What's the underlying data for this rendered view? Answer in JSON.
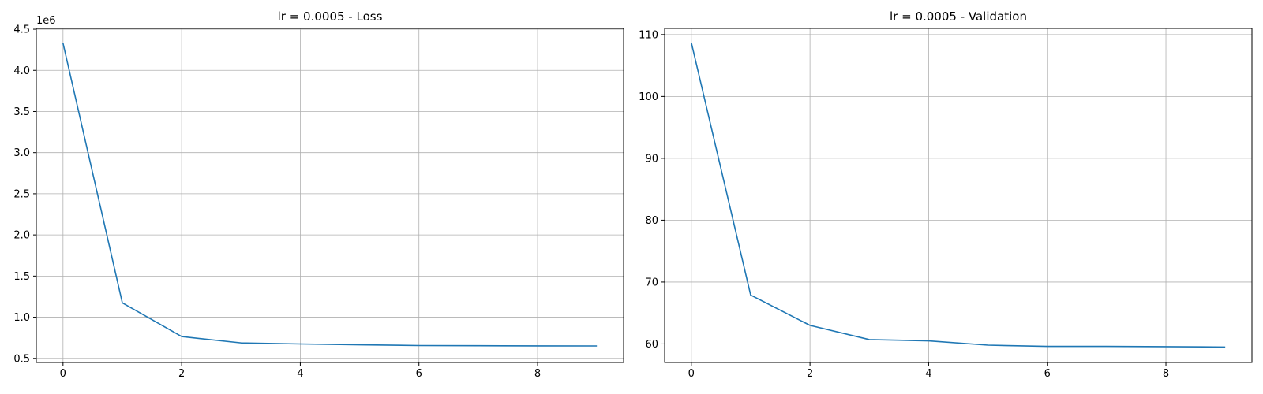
{
  "chart_data": [
    {
      "type": "line",
      "title": "lr = 0.0005 - Loss",
      "xlabel": "",
      "ylabel": "",
      "y_offset_label": "1e6",
      "x": [
        0,
        1,
        2,
        3,
        4,
        5,
        6,
        7,
        8,
        9
      ],
      "series": [
        {
          "values": [
            4330000,
            1175000,
            765000,
            688000,
            675000,
            665000,
            656000,
            654000,
            652000,
            651000
          ]
        }
      ],
      "xlim": [
        -0.45,
        9.45
      ],
      "ylim": [
        450000,
        4510000
      ],
      "xticks": [
        0,
        2,
        4,
        6,
        8
      ],
      "xtick_labels": [
        "0",
        "2",
        "4",
        "6",
        "8"
      ],
      "yticks": [
        500000,
        1000000,
        1500000,
        2000000,
        2500000,
        3000000,
        3500000,
        4000000,
        4500000
      ],
      "ytick_labels": [
        "0.5",
        "1.0",
        "1.5",
        "2.0",
        "2.5",
        "3.0",
        "3.5",
        "4.0",
        "4.5"
      ],
      "grid": true,
      "line_color": "#1f77b4"
    },
    {
      "type": "line",
      "title": "lr = 0.0005 - Validation",
      "xlabel": "",
      "ylabel": "",
      "x": [
        0,
        1,
        2,
        3,
        4,
        5,
        6,
        7,
        8,
        9
      ],
      "series": [
        {
          "values": [
            108.7,
            67.9,
            63.0,
            60.7,
            60.5,
            59.8,
            59.6,
            59.6,
            59.55,
            59.5
          ]
        }
      ],
      "xlim": [
        -0.45,
        9.45
      ],
      "ylim": [
        57.0,
        111.0
      ],
      "xticks": [
        0,
        2,
        4,
        6,
        8
      ],
      "xtick_labels": [
        "0",
        "2",
        "4",
        "6",
        "8"
      ],
      "yticks": [
        60,
        70,
        80,
        90,
        100,
        110
      ],
      "ytick_labels": [
        "60",
        "70",
        "80",
        "90",
        "100",
        "110"
      ],
      "grid": true,
      "line_color": "#1f77b4"
    }
  ]
}
